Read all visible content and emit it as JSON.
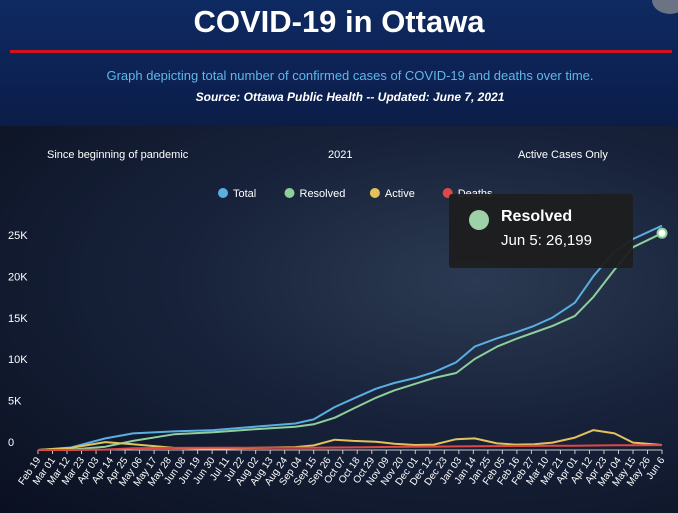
{
  "header": {
    "title": "COVID-19 in Ottawa",
    "subtitle": "Graph depicting total number of confirmed cases of COVID-19 and deaths over time.",
    "source": "Source:  Ottawa Public Health -- Updated:  June 7, 2021"
  },
  "tabs": [
    "Since beginning of pandemic",
    "2021",
    "Active Cases Only"
  ],
  "colors": {
    "header_bg": "#0d2254",
    "title_rule": "#d0121b",
    "subtitle": "#5fb7ea"
  },
  "tooltip": {
    "series": "Resolved",
    "value": "Jun 5: 26,199"
  },
  "chart_data": {
    "type": "line",
    "legend_position": "top",
    "y_tick_labels": [
      "0",
      "5K",
      "10K",
      "15K",
      "20K",
      "25K"
    ],
    "ylim": [
      0,
      29000
    ],
    "xlim": [
      "2020-02-19",
      "2021-06-06"
    ],
    "x_tick_labels": [
      "Feb 19",
      "Mar 01",
      "Mar 12",
      "Mar 23",
      "Apr 03",
      "Apr 14",
      "Apr 25",
      "May 06",
      "May 17",
      "May 28",
      "Jun 08",
      "Jun 19",
      "Jun 30",
      "Jul 11",
      "Jul 22",
      "Aug 02",
      "Aug 13",
      "Aug 24",
      "Sep 04",
      "Sep 15",
      "Sep 26",
      "Oct 07",
      "Oct 18",
      "Oct 29",
      "Nov 09",
      "Nov 20",
      "Dec 01",
      "Dec 12",
      "Dec 23",
      "Jan 03",
      "Jan 14",
      "Jan 25",
      "Feb 05",
      "Feb 16",
      "Feb 27",
      "Mar 10",
      "Mar 21",
      "Apr 01",
      "Apr 12",
      "Apr 23",
      "May 04",
      "May 15",
      "May 26",
      "Jun 6"
    ],
    "x": [
      "2020-02-19",
      "2020-03-15",
      "2020-04-10",
      "2020-05-01",
      "2020-06-01",
      "2020-07-01",
      "2020-08-01",
      "2020-09-01",
      "2020-09-15",
      "2020-10-01",
      "2020-10-15",
      "2020-11-01",
      "2020-11-15",
      "2020-12-01",
      "2020-12-15",
      "2021-01-01",
      "2021-01-15",
      "2021-02-01",
      "2021-02-15",
      "2021-03-01",
      "2021-03-15",
      "2021-04-01",
      "2021-04-15",
      "2021-05-01",
      "2021-05-15",
      "2021-06-06"
    ],
    "series": [
      {
        "name": "Total",
        "color": "#5aaee2",
        "values": [
          0,
          300,
          1400,
          2000,
          2250,
          2400,
          2800,
          3200,
          3700,
          5200,
          6200,
          7400,
          8100,
          8700,
          9400,
          10600,
          12500,
          13500,
          14200,
          15000,
          16000,
          17800,
          21000,
          24000,
          25500,
          27100
        ]
      },
      {
        "name": "Resolved",
        "color": "#8fcf9b",
        "values": [
          0,
          50,
          400,
          1100,
          1900,
          2150,
          2500,
          2800,
          3100,
          3900,
          5000,
          6300,
          7200,
          8000,
          8700,
          9300,
          11000,
          12500,
          13400,
          14200,
          15000,
          16200,
          18500,
          21800,
          24500,
          26199
        ]
      },
      {
        "name": "Active",
        "color": "#e3c25a",
        "values": [
          0,
          250,
          950,
          700,
          250,
          150,
          250,
          350,
          550,
          1250,
          1100,
          1000,
          750,
          600,
          650,
          1300,
          1400,
          800,
          650,
          700,
          900,
          1500,
          2400,
          2000,
          900,
          600
        ]
      },
      {
        "name": "Deaths",
        "color": "#e04848",
        "values": [
          0,
          3,
          50,
          200,
          255,
          263,
          265,
          270,
          275,
          300,
          320,
          350,
          370,
          390,
          410,
          430,
          450,
          470,
          480,
          500,
          510,
          520,
          540,
          570,
          585,
          590
        ]
      }
    ]
  }
}
